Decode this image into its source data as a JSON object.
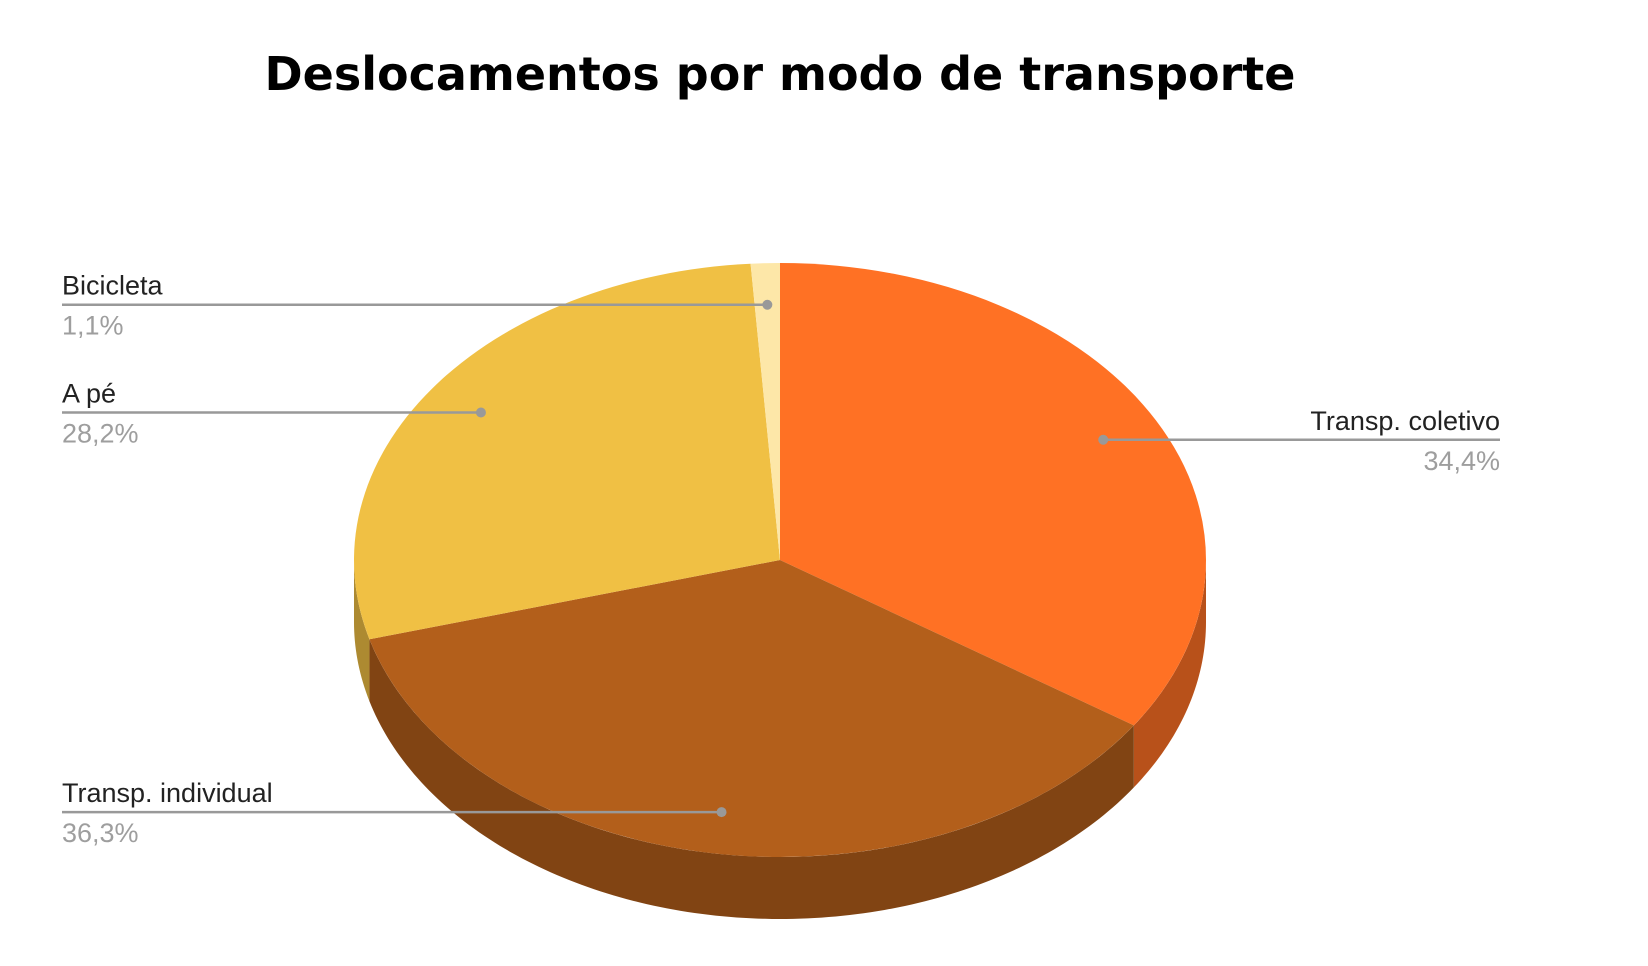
{
  "chart_data": {
    "type": "pie",
    "title": "Deslocamentos por modo de transporte",
    "three_d": true,
    "slices": [
      {
        "label": "Transp. coletivo",
        "value": 34.4,
        "value_label": "34,4%",
        "color": "#ff7124"
      },
      {
        "label": "Transp. individual",
        "value": 36.3,
        "value_label": "36,3%",
        "color": "#b35f1b"
      },
      {
        "label": "A pé",
        "value": 28.2,
        "value_label": "28,2%",
        "color": "#f0c044"
      },
      {
        "label": "Bicicleta",
        "value": 1.1,
        "value_label": "1,1%",
        "color": "#fde7a8"
      }
    ]
  }
}
